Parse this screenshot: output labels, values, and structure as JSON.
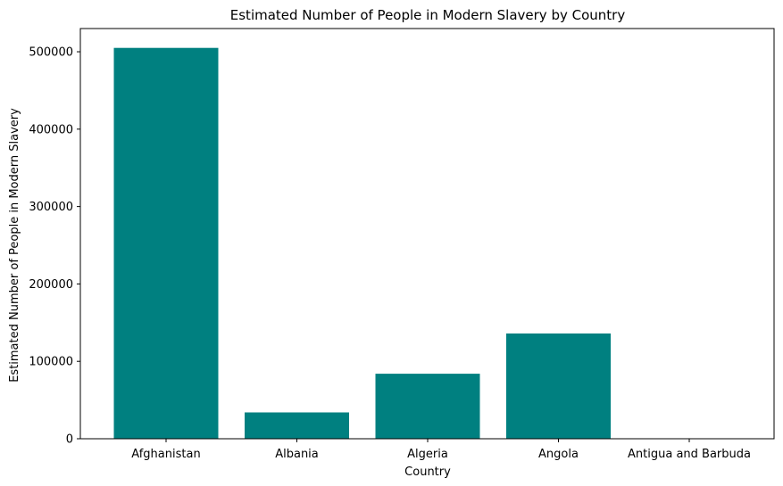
{
  "chart_data": {
    "type": "bar",
    "title": "Estimated Number of People in Modern Slavery by Country",
    "xlabel": "Country",
    "ylabel": "Estimated Number of People in Modern Slavery",
    "categories": [
      "Afghanistan",
      "Albania",
      "Algeria",
      "Angola",
      "Antigua and Barbuda"
    ],
    "values": [
      505000,
      34000,
      84000,
      136000,
      0
    ],
    "ylim": [
      0,
      530000
    ],
    "yticks": [
      0,
      100000,
      200000,
      300000,
      400000,
      500000
    ],
    "yticklabels": [
      "0",
      "100000",
      "200000",
      "300000",
      "400000",
      "500000"
    ],
    "bar_color": "#008080",
    "grid": false,
    "legend": "none"
  }
}
